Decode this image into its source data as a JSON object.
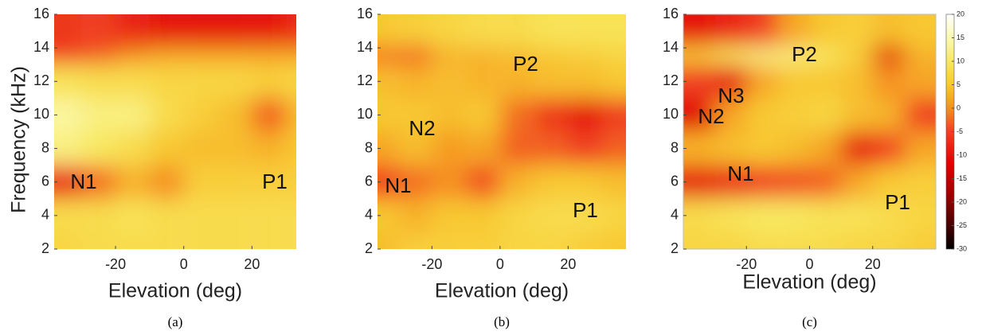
{
  "chart_data": [
    {
      "type": "heatmap",
      "caption": "(a)",
      "xlabel": "Elevation (deg)",
      "ylabel": "Frequency (kHz)",
      "annotations": [
        "N1",
        "P1"
      ],
      "xlim": [
        -38,
        33
      ],
      "ylim": [
        2,
        16
      ],
      "xticks": [
        -20,
        0,
        20
      ],
      "yticks": [
        2,
        4,
        6,
        8,
        10,
        12,
        14,
        16
      ],
      "zlim": [
        -30,
        20
      ],
      "x": [
        -35,
        -25,
        -15,
        -5,
        5,
        15,
        25,
        35
      ],
      "y": [
        2,
        4,
        6,
        8,
        10,
        12,
        14,
        16
      ],
      "z": [
        [
          7,
          8,
          8,
          8,
          8,
          8,
          8,
          8
        ],
        [
          8,
          8,
          9,
          8,
          8,
          8,
          8,
          8
        ],
        [
          -8,
          -2,
          3,
          0,
          6,
          6,
          6,
          6
        ],
        [
          12,
          10,
          8,
          5,
          4,
          4,
          3,
          5
        ],
        [
          14,
          12,
          12,
          8,
          6,
          4,
          -3,
          4
        ],
        [
          9,
          8,
          8,
          7,
          7,
          7,
          6,
          7
        ],
        [
          -5,
          -3,
          0,
          2,
          2,
          2,
          2,
          2
        ],
        [
          -6,
          -5,
          -8,
          -10,
          -10,
          -10,
          -10,
          -7
        ]
      ]
    },
    {
      "type": "heatmap",
      "caption": "(b)",
      "xlabel": "Elevation (deg)",
      "annotations": [
        "P2",
        "N2",
        "N1",
        "P1"
      ],
      "xlim": [
        -36,
        37
      ],
      "ylim": [
        2,
        16
      ],
      "xticks": [
        -20,
        0,
        20
      ],
      "yticks": [
        2,
        4,
        6,
        8,
        10,
        12,
        14,
        16
      ],
      "zlim": [
        -30,
        20
      ],
      "x": [
        -35,
        -25,
        -15,
        -5,
        5,
        15,
        25,
        35
      ],
      "y": [
        2,
        4,
        6,
        8,
        10,
        12,
        14,
        16
      ],
      "z": [
        [
          4,
          6,
          6,
          6,
          7,
          7,
          6,
          5
        ],
        [
          5,
          3,
          5,
          5,
          7,
          8,
          8,
          7
        ],
        [
          -5,
          -2,
          0,
          -4,
          3,
          5,
          5,
          4
        ],
        [
          2,
          4,
          1,
          2,
          -3,
          -3,
          -5,
          -3
        ],
        [
          5,
          5,
          4,
          5,
          -2,
          -6,
          -10,
          -5
        ],
        [
          4,
          3,
          4,
          3,
          3,
          4,
          4,
          5
        ],
        [
          -2,
          -3,
          3,
          3,
          4,
          5,
          6,
          7
        ],
        [
          5,
          6,
          7,
          8,
          8,
          9,
          9,
          9
        ]
      ]
    },
    {
      "type": "heatmap",
      "caption": "(c)",
      "xlabel": "Elevation (deg)",
      "annotations": [
        "P2",
        "N3",
        "N2",
        "N1",
        "P1"
      ],
      "xlim": [
        -40,
        40
      ],
      "ylim": [
        2,
        16
      ],
      "xticks": [
        -20,
        0,
        20
      ],
      "yticks": [
        2,
        4,
        6,
        8,
        10,
        12,
        14,
        16
      ],
      "zlim": [
        -30,
        20
      ],
      "zticks": [
        20,
        15,
        10,
        5,
        0,
        -5,
        -10,
        -15,
        -20,
        -25,
        -30
      ],
      "colorbar": true,
      "x": [
        -35,
        -25,
        -15,
        -5,
        5,
        15,
        25,
        35
      ],
      "y": [
        2,
        4,
        6,
        8,
        10,
        12,
        14,
        16
      ],
      "z": [
        [
          7,
          7,
          8,
          8,
          8,
          7,
          7,
          6
        ],
        [
          8,
          9,
          10,
          10,
          9,
          9,
          8,
          7
        ],
        [
          -10,
          -8,
          -5,
          -4,
          -3,
          2,
          5,
          6
        ],
        [
          3,
          4,
          5,
          4,
          2,
          -10,
          -5,
          2
        ],
        [
          -12,
          2,
          5,
          6,
          7,
          4,
          3,
          -5
        ],
        [
          -5,
          -10,
          2,
          5,
          5,
          4,
          0,
          2
        ],
        [
          6,
          10,
          12,
          12,
          10,
          6,
          -12,
          3
        ],
        [
          -10,
          -8,
          -5,
          2,
          5,
          6,
          4,
          5
        ]
      ]
    }
  ]
}
